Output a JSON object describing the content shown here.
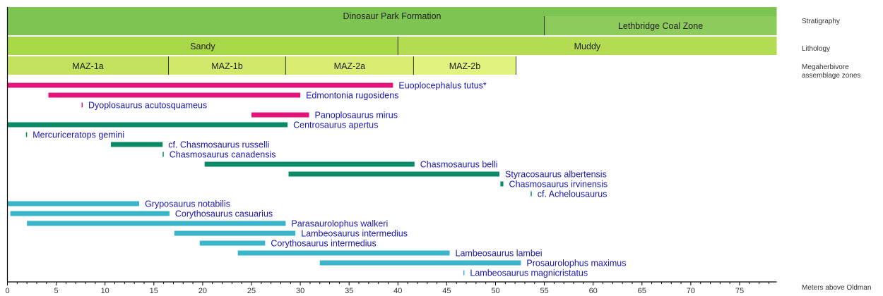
{
  "chart_data": {
    "type": "range-bar",
    "xlabel": "Meters above Oldman",
    "xlim": [
      0,
      78.8
    ],
    "xticks": [
      0,
      5,
      10,
      15,
      20,
      25,
      30,
      35,
      40,
      45,
      50,
      55,
      60,
      65,
      70,
      75
    ],
    "grid": false,
    "colors": {
      "ankylosaur": "#e2147a",
      "ceratopsid": "#0b8a68",
      "hadrosaur": "#3ab4ca",
      "label": "#1a17b0"
    },
    "rows": {
      "stratigraphy": {
        "label": "Stratigraphy",
        "units": [
          {
            "name": "Dinosaur Park Formation",
            "start": 0,
            "end": 78.8,
            "color": "#7dc452"
          },
          {
            "name": "Lethbridge Coal Zone",
            "start": 55.0,
            "end": 78.8,
            "color": "#8dcb5c"
          }
        ]
      },
      "lithology": {
        "label": "Lithology",
        "units": [
          {
            "name": "Sandy",
            "start": 0,
            "end": 40.0,
            "color": "#a8d848"
          },
          {
            "name": "Muddy",
            "start": 40.0,
            "end": 78.8,
            "color": "#b4dc52"
          }
        ]
      },
      "maz": {
        "label": "Megaherbivore assemblage zones",
        "units": [
          {
            "name": "MAZ-1a",
            "start": 0,
            "end": 16.5,
            "color": "#c5e25e"
          },
          {
            "name": "MAZ-1b",
            "start": 16.5,
            "end": 28.5,
            "color": "#d2e86a"
          },
          {
            "name": "MAZ-2a",
            "start": 28.5,
            "end": 41.6,
            "color": "#daec72"
          },
          {
            "name": "MAZ-2b",
            "start": 41.6,
            "end": 52.1,
            "color": "#e2f27e"
          }
        ]
      }
    },
    "series": [
      {
        "name": "Euoplocephalus tutus*",
        "start": 0,
        "end": 39.5,
        "group": "ankylosaur"
      },
      {
        "name": "Edmontonia rugosidens",
        "start": 4.2,
        "end": 30.0,
        "group": "ankylosaur"
      },
      {
        "name": "Dyoplosaurus acutosquameus",
        "start": 7.6,
        "end": 7.7,
        "group": "ankylosaur"
      },
      {
        "name": "Panoplosaurus mirus",
        "start": 25.0,
        "end": 30.9,
        "group": "ankylosaur"
      },
      {
        "name": "Centrosaurus apertus",
        "start": 0,
        "end": 28.7,
        "group": "ceratopsid"
      },
      {
        "name": "Mercuriceratops gemini",
        "start": 1.9,
        "end": 2.0,
        "group": "ceratopsid"
      },
      {
        "name": "cf. Chasmosaurus russelli",
        "start": 10.6,
        "end": 15.9,
        "group": "ceratopsid"
      },
      {
        "name": "Chasmosaurus canadensis",
        "start": 15.9,
        "end": 16.0,
        "group": "ceratopsid"
      },
      {
        "name": "Chasmosaurus belli",
        "start": 20.2,
        "end": 41.7,
        "group": "ceratopsid"
      },
      {
        "name": "Styracosaurus albertensis",
        "start": 28.8,
        "end": 50.4,
        "group": "ceratopsid"
      },
      {
        "name": "Chasmosaurus irvinensis",
        "start": 50.5,
        "end": 50.8,
        "group": "ceratopsid"
      },
      {
        "name": "cf. Achelousaurus",
        "start": 53.6,
        "end": 53.7,
        "group": "ceratopsid"
      },
      {
        "name": "Gryposaurus notabilis",
        "start": 0,
        "end": 13.5,
        "group": "hadrosaur"
      },
      {
        "name": "Corythosaurus casuarius",
        "start": 0.3,
        "end": 16.6,
        "group": "hadrosaur"
      },
      {
        "name": "Parasaurolophus walkeri",
        "start": 2.0,
        "end": 28.5,
        "group": "hadrosaur"
      },
      {
        "name": "Lambeosaurus intermedius",
        "start": 17.1,
        "end": 29.5,
        "group": "hadrosaur"
      },
      {
        "name": "Corythosaurus intermedius",
        "start": 19.7,
        "end": 26.4,
        "group": "hadrosaur"
      },
      {
        "name": "Lambeosaurus lambei",
        "start": 23.6,
        "end": 45.3,
        "group": "hadrosaur"
      },
      {
        "name": "Prosaurolophus maximus",
        "start": 32.0,
        "end": 52.6,
        "group": "hadrosaur"
      },
      {
        "name": "Lambeosaurus magnicristatus",
        "start": 46.7,
        "end": 46.8,
        "group": "hadrosaur"
      }
    ]
  }
}
